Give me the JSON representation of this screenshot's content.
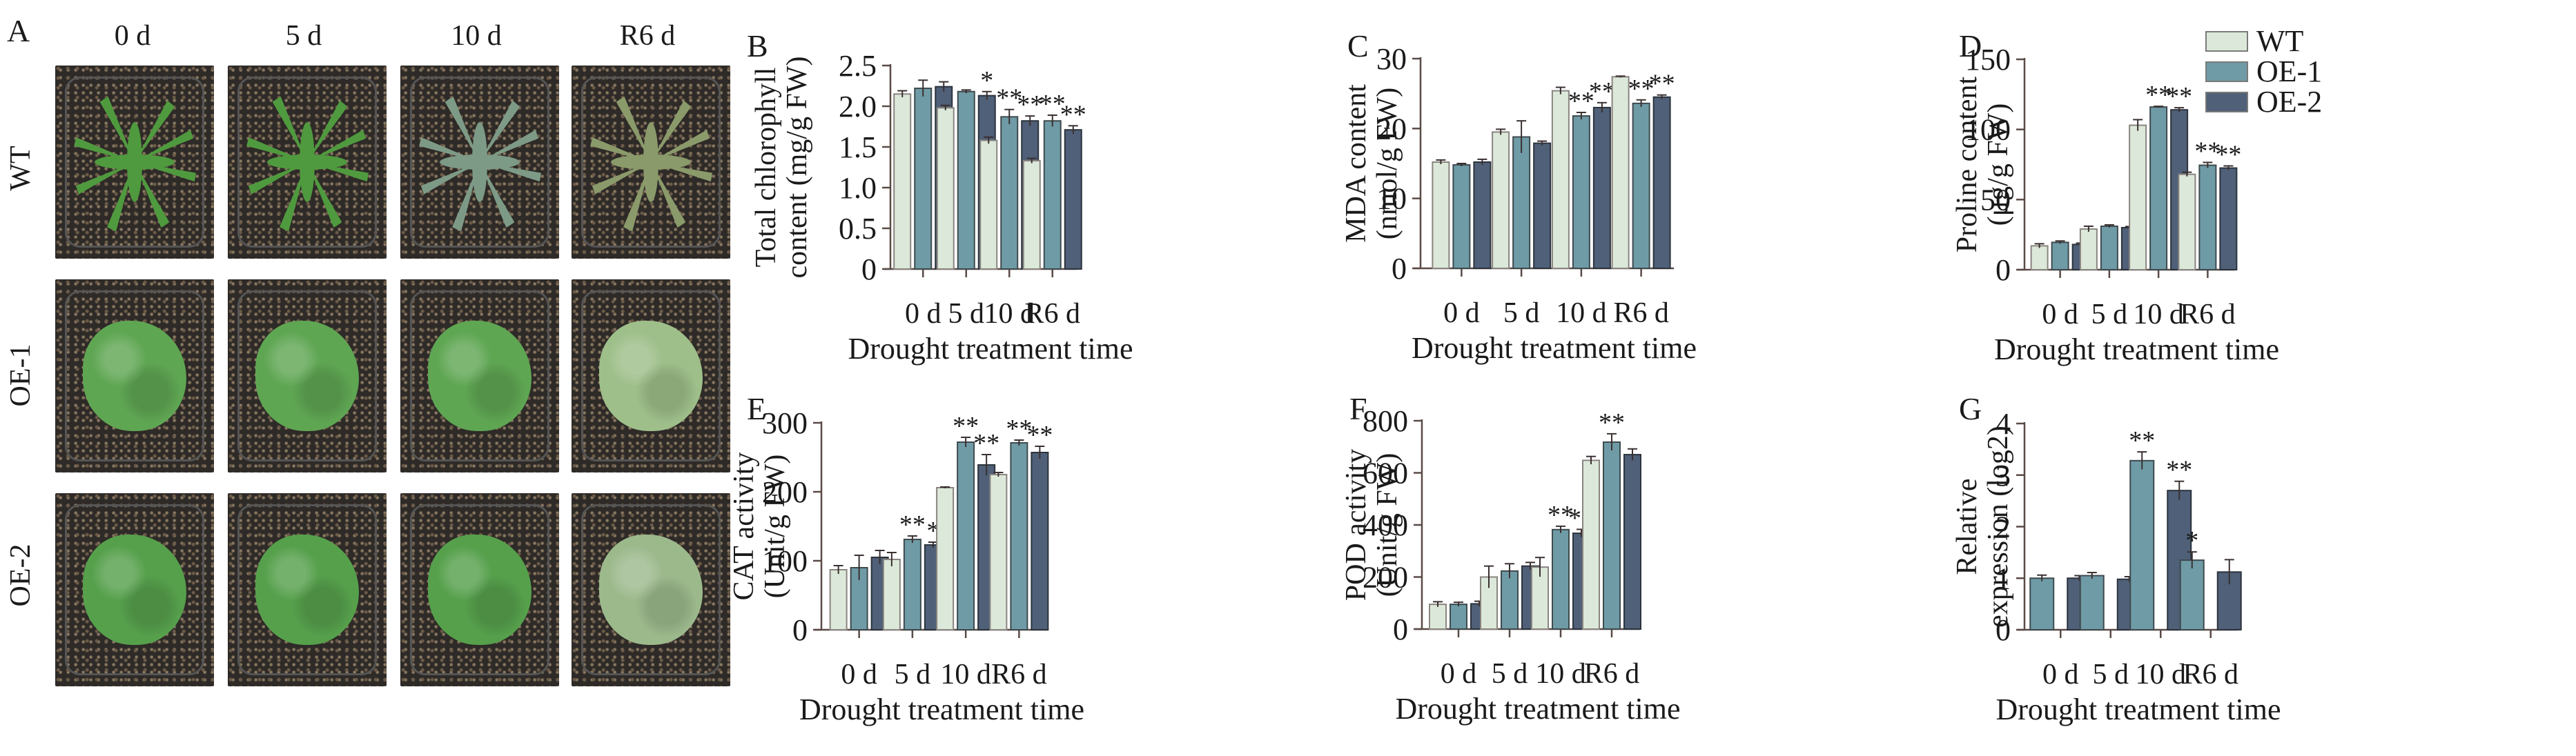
{
  "figure": {
    "panel_a": {
      "letter": "A",
      "columns": [
        "0 d",
        "5 d",
        "10 d",
        "R6 d"
      ],
      "rows": [
        "WT",
        "OE-1",
        "OE-2"
      ],
      "photo_descriptions": {
        "WT": [
          "healthy green rosette",
          "healthy green rosette",
          "wilted grey-green rosette",
          "wilted, yellowing rosette"
        ],
        "OE-1": [
          "healthy green rosette",
          "healthy green rosette",
          "healthy green rosette",
          "pale green rosette with some yellow leaves"
        ],
        "OE-2": [
          "healthy green rosette",
          "healthy green rosette",
          "healthy green rosette",
          "pale rosette with some yellow leaves"
        ]
      }
    },
    "legend": {
      "items": [
        {
          "label": "WT",
          "color": "#dce9da"
        },
        {
          "label": "OE-1",
          "color": "#6f9ba6"
        },
        {
          "label": "OE-2",
          "color": "#4f6078"
        }
      ]
    }
  },
  "chart_data": [
    {
      "id": "B",
      "letter": "B",
      "type": "bar",
      "title": "",
      "xlabel": "Drought treatment time",
      "ylabel": [
        "Total chlorophyll",
        "content (mg/g FW)"
      ],
      "categories": [
        "0 d",
        "5 d",
        "10 d",
        "R6 d"
      ],
      "ylim": [
        0,
        2.5
      ],
      "yticks": [
        "0",
        "0.5",
        "1.0",
        "1.5",
        "2.0",
        "2.5"
      ],
      "ytick_values": [
        0,
        0.5,
        1.0,
        1.5,
        2.0,
        2.5
      ],
      "series": [
        {
          "name": "WT",
          "values": [
            2.15,
            1.98,
            1.58,
            1.33
          ],
          "errors": [
            0.04,
            0.03,
            0.04,
            0.03
          ],
          "sig": [
            "",
            "",
            "",
            ""
          ]
        },
        {
          "name": "OE-1",
          "values": [
            2.22,
            2.18,
            1.87,
            1.82
          ],
          "errors": [
            0.1,
            0.02,
            0.09,
            0.07
          ],
          "sig": [
            "",
            "",
            "**",
            "**"
          ]
        },
        {
          "name": "OE-2",
          "values": [
            2.24,
            2.13,
            1.82,
            1.71
          ],
          "errors": [
            0.06,
            0.05,
            0.06,
            0.05
          ],
          "sig": [
            "",
            "*",
            "**",
            "**"
          ]
        }
      ]
    },
    {
      "id": "C",
      "letter": "C",
      "type": "bar",
      "title": "",
      "xlabel": "Drought treatment time",
      "ylabel": [
        "MDA content",
        "(nmol/g FW)"
      ],
      "categories": [
        "0 d",
        "5 d",
        "10 d",
        "R6 d"
      ],
      "ylim": [
        0,
        30
      ],
      "yticks": [
        "0",
        "10",
        "20",
        "30"
      ],
      "ytick_values": [
        0,
        10,
        20,
        30
      ],
      "series": [
        {
          "name": "WT",
          "values": [
            15.2,
            19.5,
            25.4,
            27.4
          ],
          "errors": [
            0.3,
            0.4,
            0.5,
            0.1
          ],
          "sig": [
            "",
            "",
            "",
            ""
          ]
        },
        {
          "name": "OE-1",
          "values": [
            14.8,
            18.8,
            21.8,
            23.6
          ],
          "errors": [
            0.2,
            2.3,
            0.5,
            0.5
          ],
          "sig": [
            "",
            "",
            "**",
            "**"
          ]
        },
        {
          "name": "OE-2",
          "values": [
            15.2,
            17.9,
            23.0,
            24.5
          ],
          "errors": [
            0.4,
            0.3,
            0.7,
            0.3
          ],
          "sig": [
            "",
            "",
            "**",
            "**"
          ]
        }
      ]
    },
    {
      "id": "D",
      "letter": "D",
      "type": "bar",
      "title": "",
      "xlabel": "Drought treatment time",
      "ylabel": [
        "Proline content",
        "(μg/g FW)"
      ],
      "categories": [
        "0 d",
        "5 d",
        "10 d",
        "R6 d"
      ],
      "ylim": [
        0,
        150
      ],
      "yticks": [
        "0",
        "50",
        "100",
        "150"
      ],
      "ytick_values": [
        0,
        50,
        100,
        150
      ],
      "series": [
        {
          "name": "WT",
          "values": [
            17,
            29,
            103,
            68
          ],
          "errors": [
            1.5,
            2,
            4,
            1.5
          ],
          "sig": [
            "",
            "",
            "",
            ""
          ]
        },
        {
          "name": "OE-1",
          "values": [
            19.5,
            31,
            116,
            74.5
          ],
          "errors": [
            1,
            1,
            0.5,
            2
          ],
          "sig": [
            "",
            "",
            "**",
            "**"
          ]
        },
        {
          "name": "OE-2",
          "values": [
            18,
            30,
            114,
            72.5
          ],
          "errors": [
            1,
            0.8,
            1.5,
            1.5
          ],
          "sig": [
            "",
            "",
            "**",
            "**"
          ]
        }
      ]
    },
    {
      "id": "E",
      "letter": "E",
      "type": "bar",
      "title": "",
      "xlabel": "Drought treatment time",
      "ylabel": [
        "CAT activity",
        "(Unit/g FW)"
      ],
      "categories": [
        "0 d",
        "5 d",
        "10 d",
        "R6 d"
      ],
      "ylim": [
        0,
        300
      ],
      "yticks": [
        "0",
        "100",
        "200",
        "300"
      ],
      "ytick_values": [
        0,
        100,
        200,
        300
      ],
      "series": [
        {
          "name": "WT",
          "values": [
            87,
            102,
            206,
            225
          ],
          "errors": [
            6,
            10,
            1,
            3
          ],
          "sig": [
            "",
            "",
            "",
            ""
          ]
        },
        {
          "name": "OE-1",
          "values": [
            90,
            131,
            272,
            271
          ],
          "errors": [
            18,
            5,
            7,
            4
          ],
          "sig": [
            "",
            "**",
            "**",
            "**"
          ]
        },
        {
          "name": "OE-2",
          "values": [
            105,
            123,
            239,
            257
          ],
          "errors": [
            10,
            4,
            15,
            9
          ],
          "sig": [
            "",
            "*",
            "**",
            "**"
          ]
        }
      ]
    },
    {
      "id": "F",
      "letter": "F",
      "type": "bar",
      "title": "",
      "xlabel": "Drought treatment time",
      "ylabel": [
        "POD activity",
        "(Unit/g FW)"
      ],
      "categories": [
        "0 d",
        "5 d",
        "10 d",
        "R6 d"
      ],
      "ylim": [
        0,
        800
      ],
      "yticks": [
        "0",
        "200",
        "400",
        "600",
        "800"
      ],
      "ytick_values": [
        0,
        200,
        400,
        600,
        800
      ],
      "series": [
        {
          "name": "WT",
          "values": [
            95,
            200,
            238,
            648
          ],
          "errors": [
            10,
            42,
            37,
            15
          ],
          "sig": [
            "",
            "",
            "",
            ""
          ]
        },
        {
          "name": "OE-1",
          "values": [
            95,
            223,
            382,
            718
          ],
          "errors": [
            8,
            28,
            13,
            32
          ],
          "sig": [
            "",
            "",
            "**",
            "**"
          ]
        },
        {
          "name": "OE-2",
          "values": [
            97,
            242,
            368,
            670
          ],
          "errors": [
            10,
            14,
            15,
            22
          ],
          "sig": [
            "",
            "",
            "**",
            ""
          ]
        }
      ]
    },
    {
      "id": "G",
      "letter": "G",
      "type": "bar",
      "title": "",
      "xlabel": "Drought treatment time",
      "ylabel": [
        "Relative",
        "expression (log2)"
      ],
      "categories": [
        "0 d",
        "5 d",
        "10 d",
        "R6 d"
      ],
      "ylim": [
        0,
        4
      ],
      "yticks": [
        "0",
        "1",
        "2",
        "3",
        "4"
      ],
      "ytick_values": [
        0,
        1,
        2,
        3,
        4
      ],
      "series": [
        {
          "name": "OE-1",
          "values": [
            1.0,
            1.05,
            3.28,
            1.35
          ],
          "errors": [
            0.06,
            0.06,
            0.17,
            0.16
          ],
          "sig": [
            "",
            "",
            "**",
            "*"
          ]
        },
        {
          "name": "OE-2",
          "values": [
            1.0,
            0.98,
            2.7,
            1.12
          ],
          "errors": [
            0.05,
            0.05,
            0.18,
            0.24
          ],
          "sig": [
            "",
            "",
            "**",
            ""
          ]
        }
      ]
    }
  ]
}
